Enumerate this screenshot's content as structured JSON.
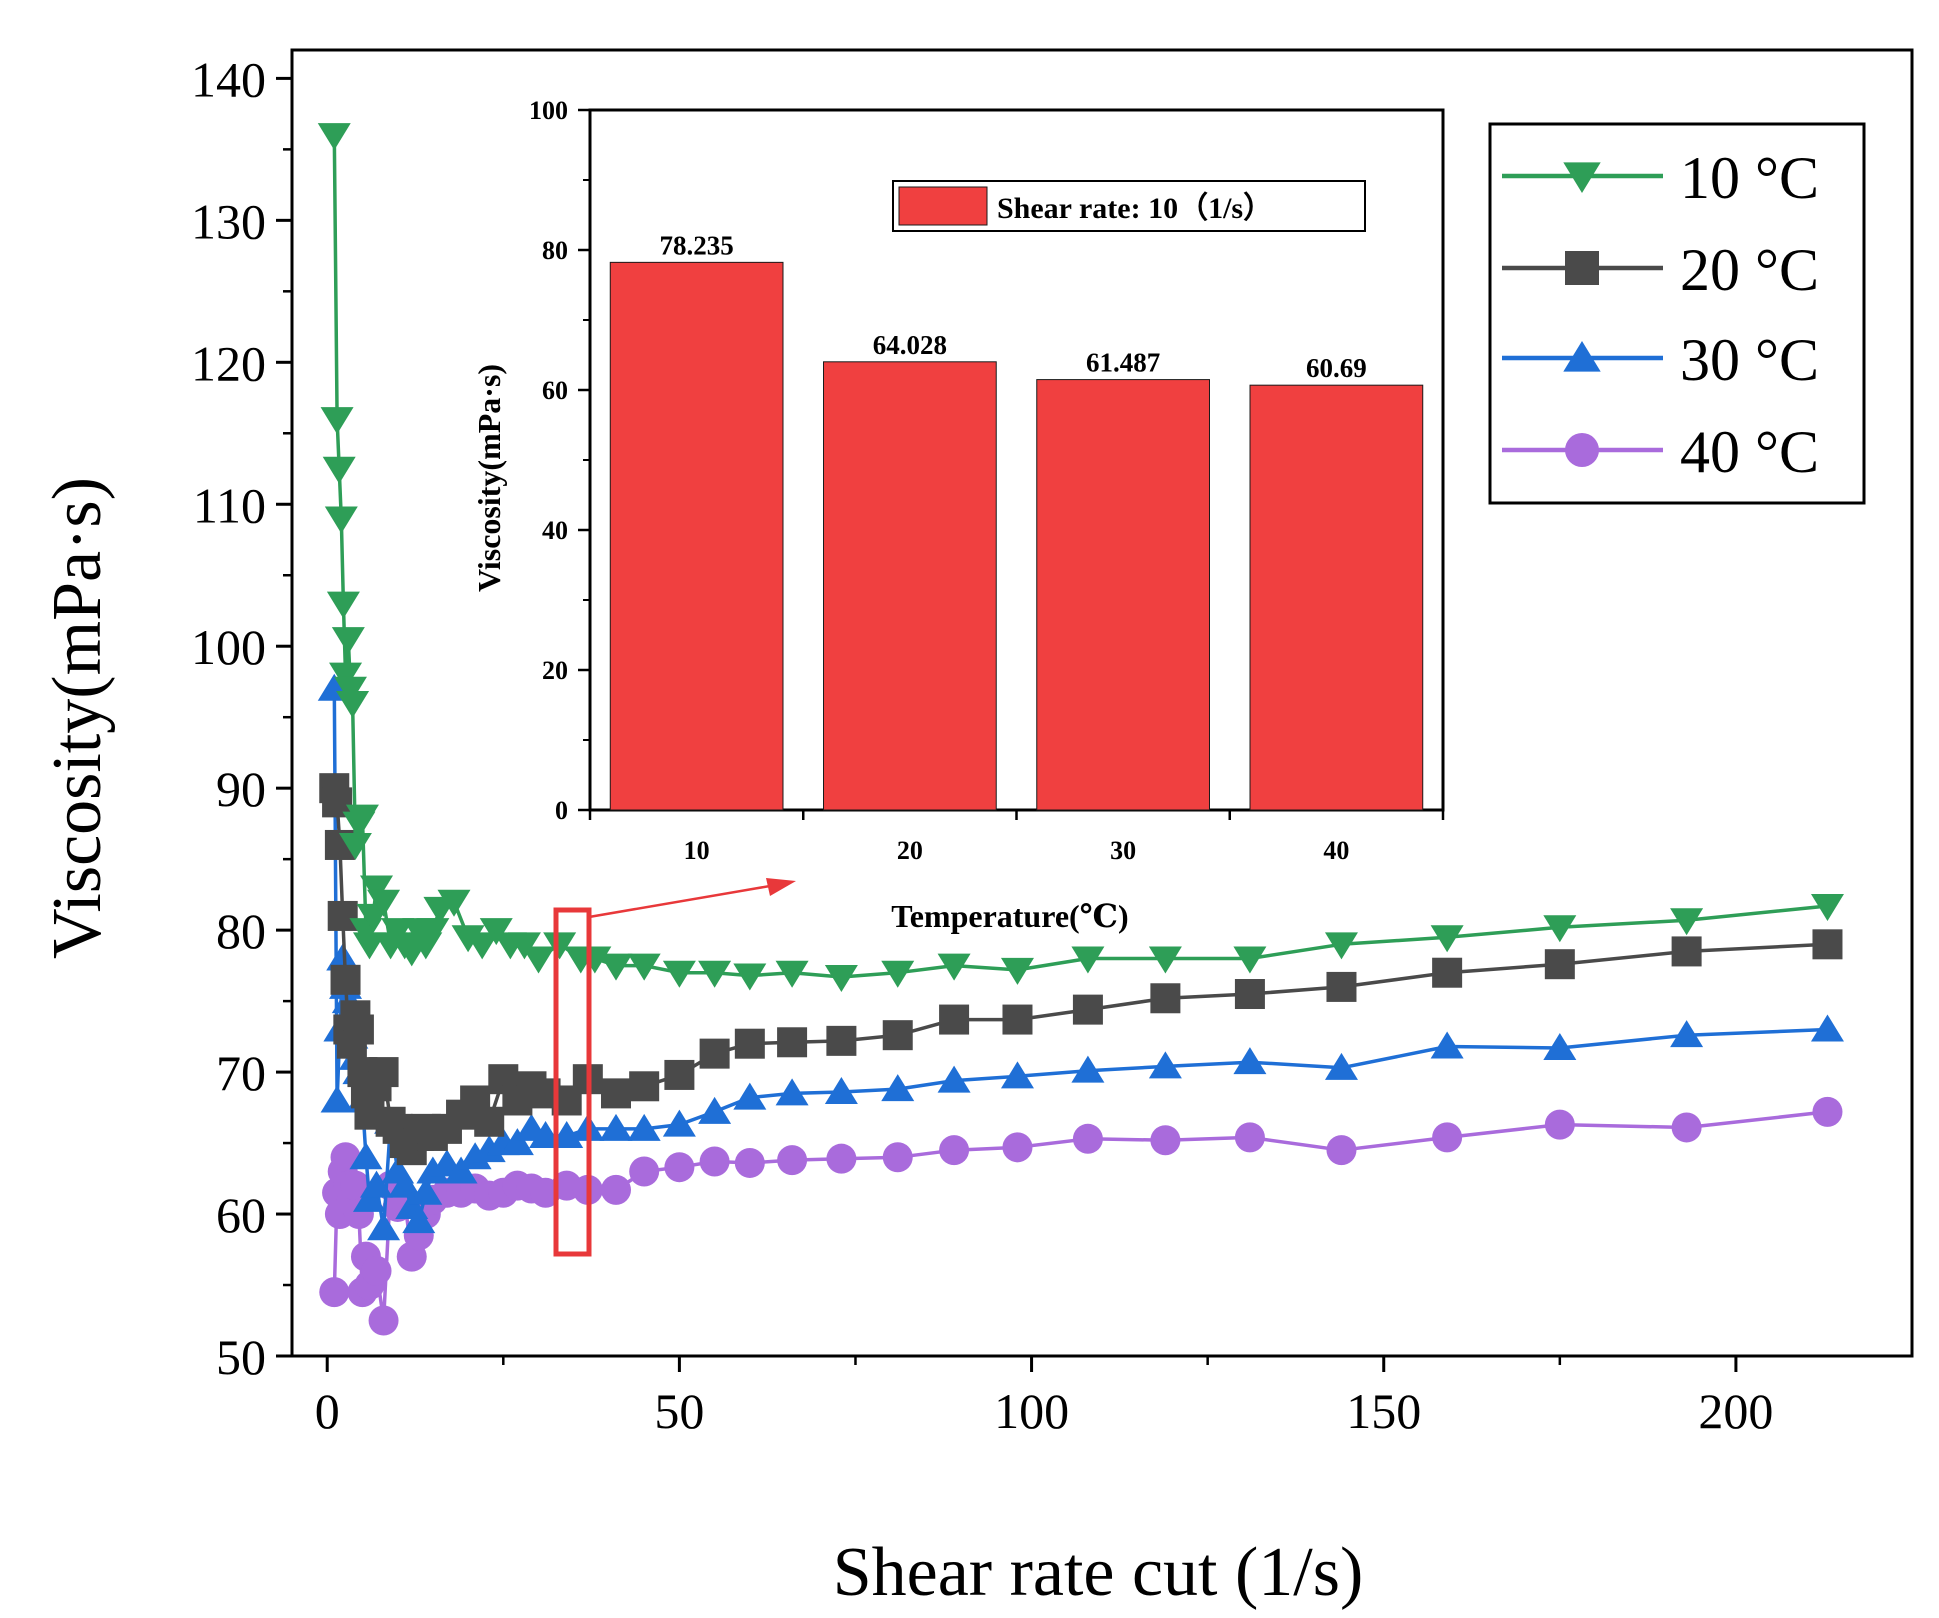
{
  "chart_data": [
    {
      "type": "line",
      "title": "",
      "xlabel": "Shear rate cut (1/s)",
      "ylabel": "Viscosity(mPa·s)",
      "xlim": [
        -5,
        225
      ],
      "ylim": [
        50,
        142
      ],
      "xticks": [
        0,
        50,
        100,
        150,
        200
      ],
      "yticks": [
        50,
        60,
        70,
        80,
        90,
        100,
        110,
        120,
        130,
        140
      ],
      "grid": false,
      "legend_position": "top-right",
      "series": [
        {
          "name": "10 °C",
          "color": "#2e9e57",
          "marker": "triangle-down",
          "x": [
            1,
            1.4,
            1.7,
            2,
            2.3,
            2.6,
            3,
            3.3,
            3.6,
            4,
            4.5,
            5,
            5.5,
            6,
            6.5,
            7,
            8,
            9,
            10,
            11,
            12,
            13,
            14,
            15,
            16,
            18,
            20,
            22,
            24,
            26,
            28,
            30,
            33,
            36,
            38,
            41,
            45,
            50,
            55,
            60,
            66,
            73,
            81,
            89,
            98,
            108,
            119,
            131,
            144,
            159,
            175,
            193,
            213
          ],
          "y": [
            136,
            116,
            112.5,
            109,
            103,
            98,
            100.5,
            97,
            96,
            86,
            87.5,
            88,
            80,
            79,
            81,
            83,
            82,
            79,
            80,
            79,
            78.5,
            80,
            79,
            80,
            81.5,
            82,
            79.5,
            79,
            80,
            79,
            79,
            78,
            79,
            78,
            78,
            77.5,
            77.5,
            77,
            77,
            76.8,
            77,
            76.7,
            77,
            77.5,
            77.2,
            78,
            78,
            78,
            79,
            79.5,
            80.2,
            80.7,
            81.7
          ]
        },
        {
          "name": "20 °C",
          "color": "#4a4a4a",
          "marker": "square",
          "x": [
            1,
            1.4,
            1.8,
            2.2,
            2.6,
            3,
            3.5,
            4,
            4.5,
            5,
            5.5,
            6,
            7,
            8,
            9,
            10,
            11,
            12,
            13,
            14,
            15,
            17,
            19,
            21,
            23,
            25,
            27,
            29,
            31,
            34,
            37,
            41,
            45,
            50,
            55,
            60,
            66,
            73,
            81,
            89,
            98,
            108,
            119,
            131,
            144,
            159,
            175,
            193,
            213
          ],
          "y": [
            90,
            89,
            86,
            81,
            76.5,
            73,
            72,
            74,
            73,
            70,
            68.5,
            67,
            69,
            70,
            66.5,
            66,
            65,
            64.5,
            65.5,
            66,
            65.5,
            66,
            67,
            68,
            66.5,
            69.5,
            68,
            69,
            68.5,
            68,
            69.5,
            68.5,
            69,
            69.8,
            71.3,
            72,
            72.1,
            72.2,
            72.6,
            73.7,
            73.7,
            74.4,
            75.2,
            75.5,
            76,
            77,
            77.6,
            78.5,
            79
          ]
        },
        {
          "name": "30 °C",
          "color": "#1f6fd6",
          "marker": "triangle-up",
          "x": [
            1,
            1.4,
            1.8,
            2.2,
            2.6,
            3,
            3.5,
            4,
            4.5,
            5,
            5.5,
            6,
            7,
            8,
            9,
            10,
            11,
            12,
            13,
            14,
            15,
            17,
            19,
            21,
            23,
            25,
            27,
            29,
            31,
            34,
            37,
            41,
            45,
            50,
            55,
            60,
            66,
            73,
            81,
            89,
            98,
            108,
            119,
            131,
            144,
            159,
            175,
            193,
            213
          ],
          "y": [
            97,
            68,
            73,
            78,
            76,
            75,
            72.5,
            71,
            70,
            68,
            64,
            61,
            62,
            59,
            66.5,
            63,
            62,
            60.5,
            59.5,
            61.5,
            63,
            63.5,
            63,
            64,
            64.5,
            65,
            65,
            66,
            65.5,
            65.5,
            66,
            66,
            66,
            66.3,
            67.2,
            68.2,
            68.5,
            68.6,
            68.8,
            69.4,
            69.7,
            70.1,
            70.4,
            70.7,
            70.3,
            71.8,
            71.7,
            72.6,
            73
          ]
        },
        {
          "name": "40 °C",
          "color": "#a96bdc",
          "marker": "circle",
          "x": [
            1,
            1.4,
            1.8,
            2.2,
            2.6,
            3,
            3.5,
            4,
            4.5,
            5,
            5.5,
            6,
            7,
            8,
            9,
            10,
            11,
            12,
            13,
            14,
            15,
            17,
            19,
            21,
            23,
            25,
            27,
            29,
            31,
            34,
            37,
            41,
            45,
            50,
            55,
            60,
            66,
            73,
            81,
            89,
            98,
            108,
            119,
            131,
            144,
            159,
            175,
            193,
            213
          ],
          "y": [
            54.5,
            61.5,
            60,
            63,
            64,
            62,
            61,
            62,
            60,
            54.5,
            57,
            55,
            56,
            52.5,
            62,
            60.5,
            61,
            57,
            58.5,
            60,
            61,
            61.5,
            61.5,
            61.8,
            61.3,
            61.5,
            62,
            61.8,
            61.5,
            62,
            61.7,
            61.7,
            63,
            63.3,
            63.7,
            63.6,
            63.8,
            63.9,
            64.0,
            64.5,
            64.7,
            65.3,
            65.2,
            65.4,
            64.5,
            65.4,
            66.3,
            66.1,
            67.2
          ]
        }
      ]
    },
    {
      "type": "bar",
      "title": "",
      "xlabel": "Temperature(℃)",
      "ylabel": "Viscosity(mPa·s)",
      "categories": [
        "10",
        "20",
        "30",
        "40"
      ],
      "values": [
        78.235,
        64.028,
        61.487,
        60.69
      ],
      "value_labels": [
        "78.235",
        "64.028",
        "61.487",
        "60.69"
      ],
      "ylim": [
        0,
        100
      ],
      "yticks": [
        0,
        20,
        40,
        60,
        80,
        100
      ],
      "grid": false,
      "legend_position": "top-center",
      "series_name": "Shear rate: 10（1/s）",
      "color": "#f04040"
    }
  ],
  "highlight_box_color": "#e8383a"
}
